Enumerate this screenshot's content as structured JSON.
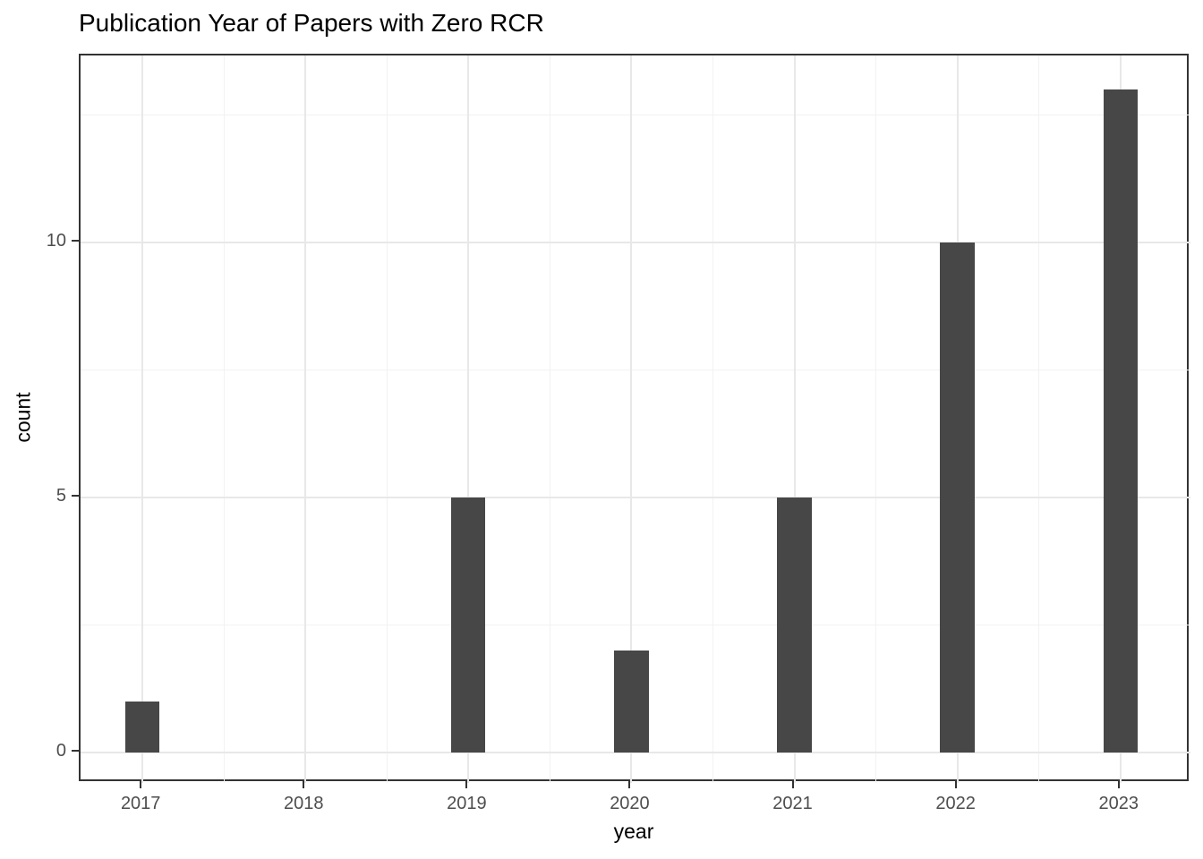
{
  "colors": {
    "background": "#FFFFFF",
    "bar_fill": "#474747",
    "panel_border": "#333333",
    "grid_major": "#E8E8E8",
    "grid_minor": "#F2F2F2",
    "tick_mark": "#333333",
    "tick_label": "#4D4D4D",
    "title_text": "#000000"
  },
  "chart_data": {
    "type": "bar",
    "title": "Publication Year of Papers with Zero RCR",
    "xlabel": "year",
    "ylabel": "count",
    "categories": [
      "2017",
      "2018",
      "2019",
      "2020",
      "2021",
      "2022",
      "2023"
    ],
    "values": [
      1,
      0,
      5,
      2,
      5,
      10,
      13
    ],
    "x_major_ticks": [
      2017,
      2018,
      2019,
      2020,
      2021,
      2022,
      2023
    ],
    "x_minor_ticks": [
      2017.5,
      2018.5,
      2019.5,
      2020.5,
      2021.5,
      2022.5
    ],
    "y_major_ticks": [
      0,
      5,
      10
    ],
    "y_tick_labels": [
      "0",
      "5",
      "10"
    ],
    "y_minor_ticks": [
      2.5,
      7.5,
      12.5
    ],
    "xlim": [
      2016.62,
      2023.43
    ],
    "ylim": [
      -0.6,
      13.67
    ],
    "bar_width_units": 0.21,
    "grid": "major-and-minor",
    "legend": "none"
  }
}
